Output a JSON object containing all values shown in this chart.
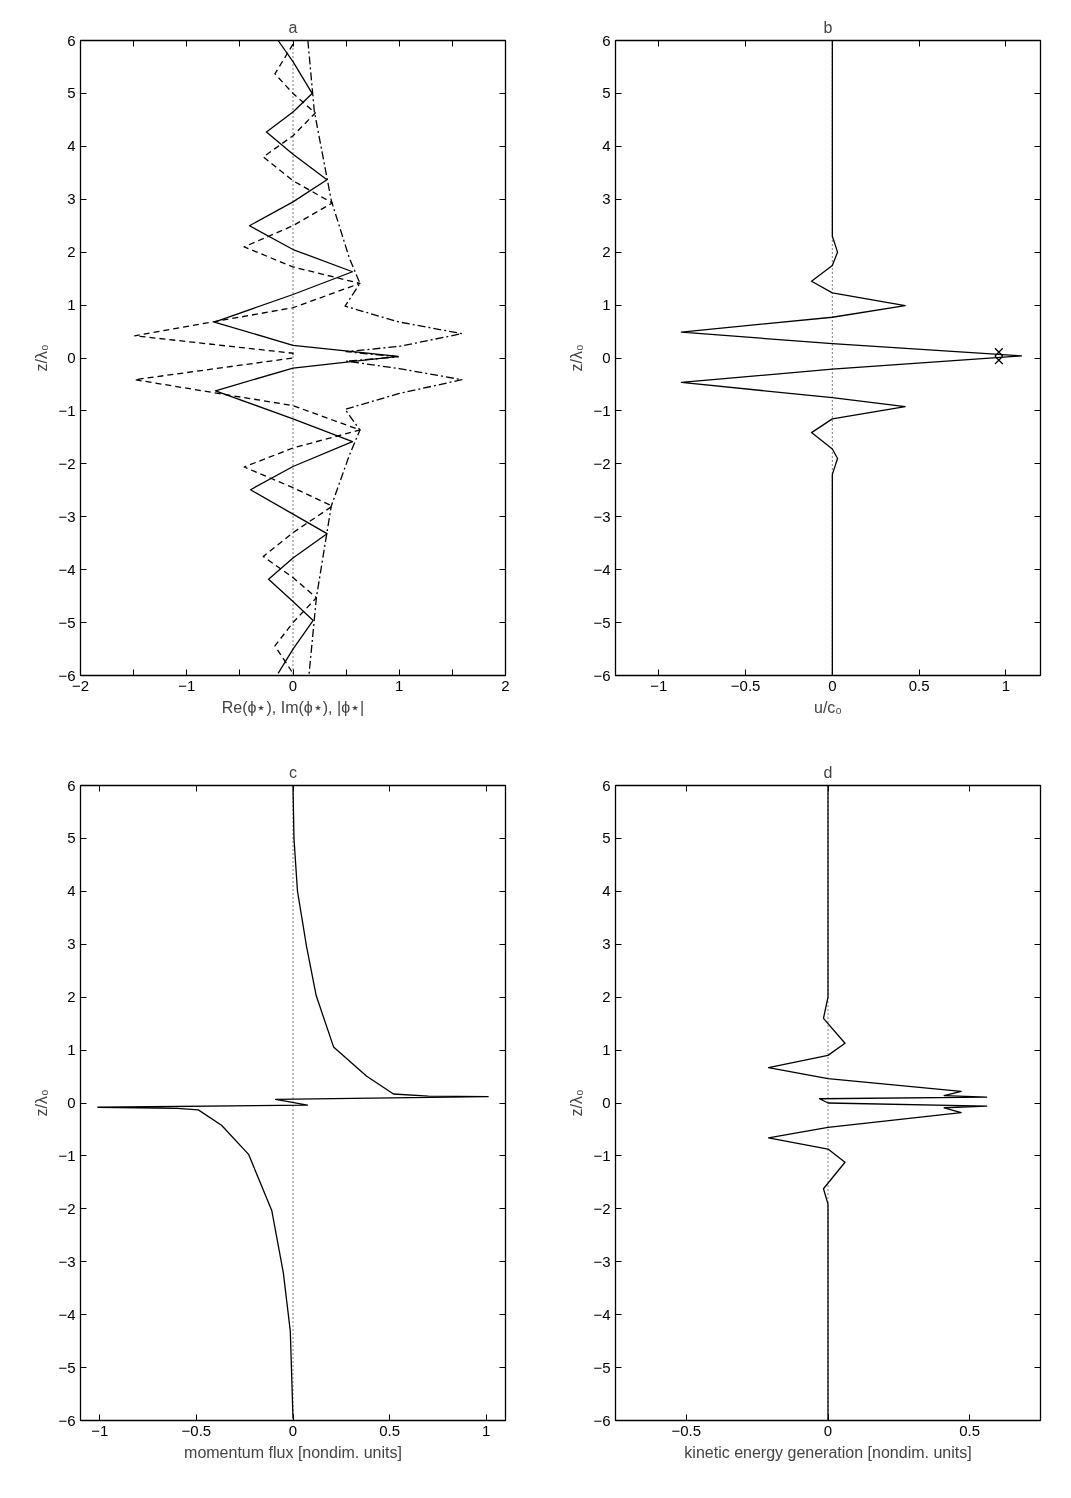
{
  "chart_data": [
    {
      "type": "line",
      "title": "a",
      "xlabel": "Re(ϕ⋆), Im(ϕ⋆), |ϕ⋆|",
      "ylabel": "z/λ₀",
      "xlim": [
        -2,
        2
      ],
      "ylim": [
        -6,
        6
      ],
      "xticks": [
        -2,
        {
          "value": -1.5,
          "label": null
        },
        -1,
        {
          "value": -0.5,
          "label": null
        },
        0,
        {
          "value": 0.5,
          "label": null
        },
        1,
        {
          "value": 1.5,
          "label": null
        },
        2
      ],
      "yticks": [
        -6,
        -5,
        -4,
        -3,
        -2,
        -1,
        0,
        1,
        2,
        3,
        4,
        5,
        6
      ],
      "ref_lines": [
        {
          "axis": "x",
          "value": 0,
          "line_style": "dotted",
          "color": "#000000"
        }
      ],
      "series": [
        {
          "color": "#000000",
          "line_style": "solid",
          "x": [
            -0.14,
            0.0,
            0.18,
            0.0,
            -0.25,
            0.0,
            0.32,
            0.0,
            -0.41,
            0.0,
            0.56,
            0.0,
            -0.74,
            0.0,
            0.99,
            0.0,
            -0.73,
            0.0,
            0.56,
            0.0,
            -0.4,
            0.0,
            0.32,
            0.0,
            -0.23,
            0.0,
            0.19,
            0.0,
            -0.14
          ],
          "values": [
            6.0,
            5.6,
            5.0,
            4.65,
            4.27,
            3.85,
            3.37,
            2.95,
            2.5,
            2.05,
            1.63,
            1.2,
            0.68,
            0.24,
            0.03,
            -0.19,
            -0.62,
            -1.15,
            -1.58,
            -2.05,
            -2.49,
            -2.95,
            -3.32,
            -3.78,
            -4.18,
            -4.6,
            -4.96,
            -5.5,
            -5.96
          ]
        },
        {
          "color": "#000000",
          "line_style": "dashed",
          "x": [
            0.0,
            -0.17,
            0.0,
            0.21,
            0.0,
            -0.28,
            0.0,
            0.37,
            0.0,
            -0.46,
            0.0,
            0.63,
            0.0,
            -1.49,
            0.0,
            0.0,
            -1.49,
            0.0,
            0.63,
            0.0,
            -0.46,
            0.0,
            0.37,
            0.0,
            -0.28,
            0.0,
            0.22,
            0.0,
            -0.17,
            0.0
          ],
          "values": [
            5.93,
            5.37,
            5.0,
            4.63,
            4.2,
            3.8,
            3.35,
            2.93,
            2.5,
            2.1,
            1.72,
            1.41,
            0.95,
            0.42,
            0.09,
            0.0,
            -0.41,
            -0.9,
            -1.36,
            -1.7,
            -2.06,
            -2.45,
            -2.8,
            -3.3,
            -3.75,
            -4.15,
            -4.53,
            -5.0,
            -5.44,
            -5.96
          ]
        },
        {
          "color": "#000000",
          "line_style": "dashdot",
          "x": [
            0.14,
            0.2,
            0.36,
            0.53,
            0.63,
            0.49,
            1.0,
            1.59,
            1.0,
            0.5,
            0.99,
            0.5,
            1.0,
            1.59,
            1.0,
            0.49,
            0.63,
            0.53,
            0.36,
            0.22,
            0.15
          ],
          "values": [
            6.0,
            4.67,
            2.98,
            1.89,
            1.41,
            0.98,
            0.68,
            0.46,
            0.22,
            0.12,
            0.02,
            -0.06,
            -0.2,
            -0.41,
            -0.67,
            -0.97,
            -1.36,
            -1.84,
            -2.8,
            -4.53,
            -6.0
          ]
        }
      ]
    },
    {
      "type": "line",
      "title": "b",
      "xlabel": "u/c₀",
      "ylabel": "z/λ₀",
      "xlim": [
        -1.25,
        1.2
      ],
      "ylim": [
        -6,
        6
      ],
      "xticks": [
        -1,
        -0.5,
        0,
        0.5,
        1
      ],
      "yticks": [
        -6,
        -5,
        -4,
        -3,
        -2,
        -1,
        0,
        1,
        2,
        3,
        4,
        5,
        6
      ],
      "ref_lines": [
        {
          "axis": "x",
          "value": 0,
          "line_style": "dotted",
          "color": "#000000"
        }
      ],
      "series": [
        {
          "color": "#000000",
          "line_style": "solid",
          "x": [
            0.0,
            0.0,
            0.03,
            0.0,
            -0.12,
            0.0,
            0.42,
            0.0,
            -0.87,
            0.0,
            1.09,
            0.0,
            -0.87,
            0.0,
            0.42,
            0.0,
            -0.12,
            0.0,
            0.03,
            0.0,
            0.0
          ],
          "values": [
            6.0,
            2.3,
            2.0,
            1.75,
            1.45,
            1.23,
            0.99,
            0.77,
            0.49,
            0.27,
            0.04,
            -0.21,
            -0.46,
            -0.75,
            -0.92,
            -1.15,
            -1.41,
            -1.72,
            -1.9,
            -2.2,
            -6.0
          ]
        },
        {
          "type": "scatter",
          "marker": "cross",
          "color": "#000000",
          "x": [
            0.96,
            0.96
          ],
          "values": [
            0.11,
            -0.04
          ]
        }
      ]
    },
    {
      "type": "line",
      "title": "c",
      "xlabel": "momentum flux [nondim. units]",
      "ylabel": "z/λ₀",
      "xlim": [
        -1.1,
        1.1
      ],
      "ylim": [
        -6,
        6
      ],
      "xticks": [
        -1,
        -0.5,
        0,
        0.5,
        1
      ],
      "yticks": [
        -6,
        -5,
        -4,
        -3,
        -2,
        -1,
        0,
        1,
        2,
        3,
        4,
        5,
        6
      ],
      "ref_lines": [
        {
          "axis": "x",
          "value": 0,
          "line_style": "dotted",
          "color": "#000000"
        }
      ],
      "series": [
        {
          "color": "#000000",
          "line_style": "solid",
          "x": [
            0.0,
            0.005,
            0.023,
            0.07,
            0.12,
            0.21,
            0.38,
            0.52,
            0.7,
            1.01,
            -0.09,
            0.075,
            -1.01,
            -0.6,
            -0.49,
            -0.37,
            -0.23,
            -0.11,
            -0.05,
            -0.014,
            0.0
          ],
          "values": [
            6.0,
            5.0,
            4.01,
            2.96,
            2.03,
            1.06,
            0.51,
            0.17,
            0.13,
            0.12,
            0.07,
            -0.04,
            -0.08,
            -0.1,
            -0.13,
            -0.42,
            -0.97,
            -2.03,
            -3.21,
            -4.31,
            -5.96
          ]
        }
      ]
    },
    {
      "type": "line",
      "title": "d",
      "xlabel": "kinetic energy generation [nondim. units]",
      "ylabel": "z/λ₀",
      "xlim": [
        -0.75,
        0.75
      ],
      "ylim": [
        -6,
        6
      ],
      "xticks": [
        -0.5,
        0,
        0.5
      ],
      "yticks": [
        -6,
        -5,
        -4,
        -3,
        -2,
        -1,
        0,
        1,
        2,
        3,
        4,
        5,
        6
      ],
      "ref_lines": [
        {
          "axis": "x",
          "value": 0,
          "line_style": "dotted",
          "color": "#000000"
        }
      ],
      "series": [
        {
          "color": "#000000",
          "line_style": "solid",
          "x": [
            0.0,
            0.0,
            -0.016,
            0.06,
            0.0,
            -0.21,
            0.0,
            0.47,
            0.41,
            0.56,
            -0.03,
            0.0,
            0.56,
            0.41,
            0.47,
            0.0,
            -0.21,
            0.0,
            0.06,
            -0.016,
            0.0,
            0.0
          ],
          "values": [
            6.0,
            2.0,
            1.6,
            1.13,
            0.9,
            0.67,
            0.46,
            0.22,
            0.14,
            0.11,
            0.08,
            0.0,
            -0.06,
            -0.09,
            -0.18,
            -0.46,
            -0.66,
            -0.87,
            -1.12,
            -1.62,
            -1.91,
            -6.0
          ]
        }
      ]
    }
  ]
}
